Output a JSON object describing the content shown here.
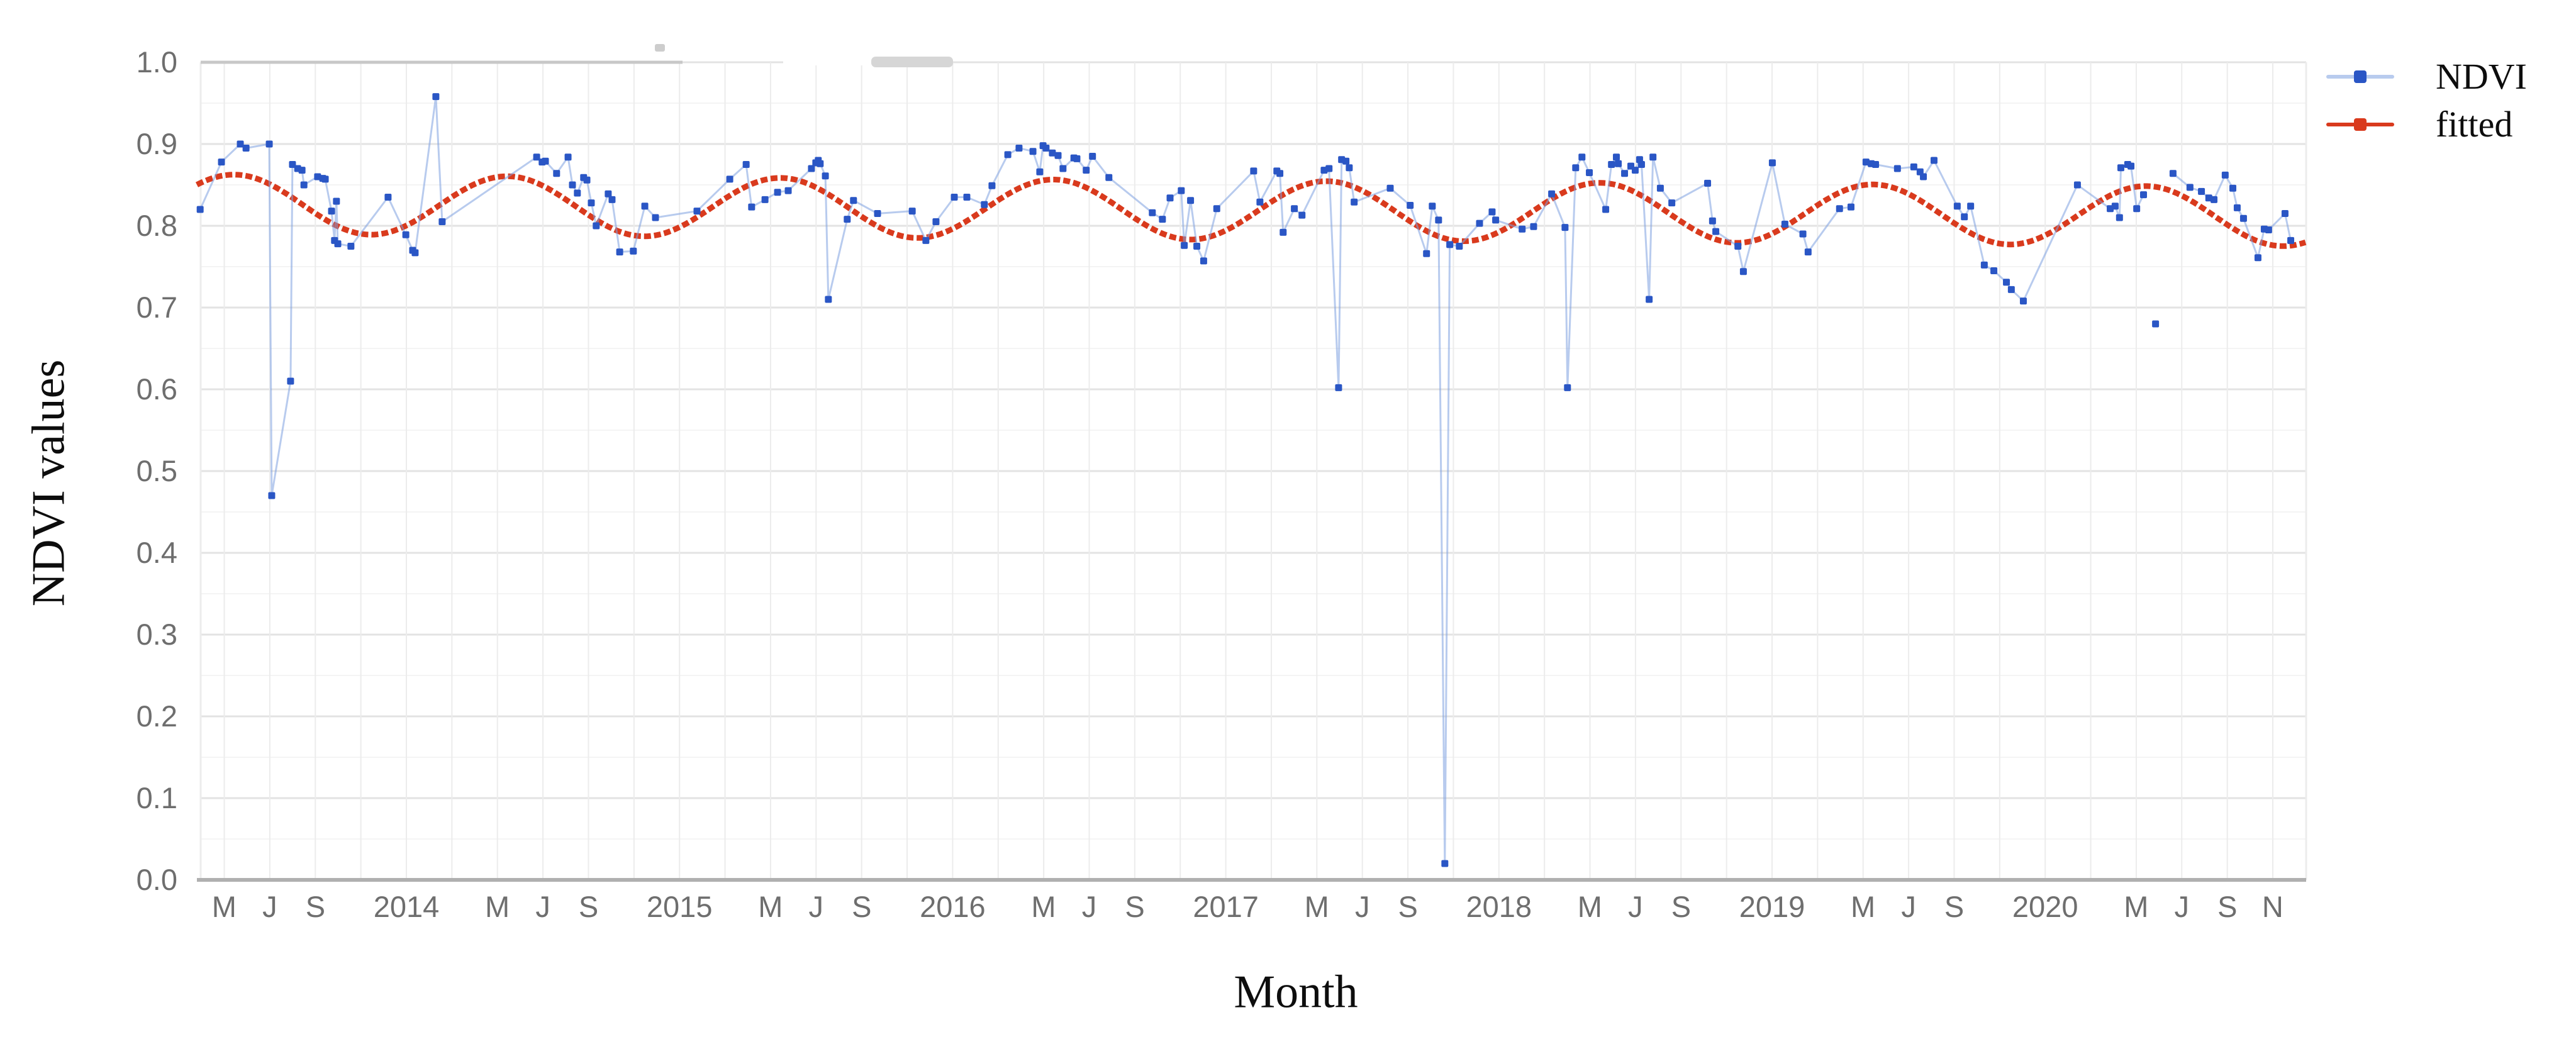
{
  "figure": {
    "background": "#ffffff",
    "y_axis_title": "NDVI values",
    "x_axis_title": "Month"
  },
  "colors": {
    "ndvi_marker": "#2a56c5",
    "ndvi_line": "rgba(125,160,224,0.55)",
    "fitted": "#d93a1d",
    "tick_text": "#6e6e6e",
    "grid_major": "#e3e3e3",
    "grid_minor": "#f4f4f4",
    "grid_vertical": "#ececec",
    "axis_line": "#b0b0b0",
    "top_line_dark_segment": "#c8c8c8",
    "artifact_gray": "#d6d6d6"
  },
  "chart_data": {
    "type": "scatter",
    "title": "",
    "xlabel": "Month",
    "ylabel": "NDVI values",
    "ylim": [
      0.0,
      1.0
    ],
    "xlim_years": [
      2013.233,
      2020.955
    ],
    "grid": "on",
    "legend_position": "outside-right-top",
    "y_ticks": [
      {
        "label": "1.0",
        "v": 1.0
      },
      {
        "label": "0.9",
        "v": 0.9
      },
      {
        "label": "0.8",
        "v": 0.8
      },
      {
        "label": "0.7",
        "v": 0.7
      },
      {
        "label": "0.6",
        "v": 0.6
      },
      {
        "label": "0.5",
        "v": 0.5
      },
      {
        "label": "0.4",
        "v": 0.4
      },
      {
        "label": "0.3",
        "v": 0.3
      },
      {
        "label": "0.2",
        "v": 0.2
      },
      {
        "label": "0.1",
        "v": 0.1
      },
      {
        "label": "0.0",
        "v": 0.0
      }
    ],
    "y_minor_grid_step": 0.05,
    "x_ticks": [
      {
        "l": "M",
        "t": 2013.333
      },
      {
        "l": "J",
        "t": 2013.5
      },
      {
        "l": "S",
        "t": 2013.667
      },
      {
        "l": "2014",
        "t": 2014.0
      },
      {
        "l": "M",
        "t": 2014.333
      },
      {
        "l": "J",
        "t": 2014.5
      },
      {
        "l": "S",
        "t": 2014.667
      },
      {
        "l": "2015",
        "t": 2015.0
      },
      {
        "l": "M",
        "t": 2015.333
      },
      {
        "l": "J",
        "t": 2015.5
      },
      {
        "l": "S",
        "t": 2015.667
      },
      {
        "l": "2016",
        "t": 2016.0
      },
      {
        "l": "M",
        "t": 2016.333
      },
      {
        "l": "J",
        "t": 2016.5
      },
      {
        "l": "S",
        "t": 2016.667
      },
      {
        "l": "2017",
        "t": 2017.0
      },
      {
        "l": "M",
        "t": 2017.333
      },
      {
        "l": "J",
        "t": 2017.5
      },
      {
        "l": "S",
        "t": 2017.667
      },
      {
        "l": "2018",
        "t": 2018.0
      },
      {
        "l": "M",
        "t": 2018.333
      },
      {
        "l": "J",
        "t": 2018.5
      },
      {
        "l": "S",
        "t": 2018.667
      },
      {
        "l": "2019",
        "t": 2019.0
      },
      {
        "l": "M",
        "t": 2019.333
      },
      {
        "l": "J",
        "t": 2019.5
      },
      {
        "l": "S",
        "t": 2019.667
      },
      {
        "l": "2020",
        "t": 2020.0
      },
      {
        "l": "M",
        "t": 2020.333
      },
      {
        "l": "J",
        "t": 2020.5
      },
      {
        "l": "S",
        "t": 2020.667
      },
      {
        "l": "N",
        "t": 2020.833
      }
    ],
    "x_grid_interval_months": 2,
    "series": [
      {
        "name": "NDVI",
        "type": "scatter-line",
        "color": "#2a56c5",
        "line_color": "rgba(125,160,224,0.55)",
        "points": [
          [
            2013.245,
            0.82
          ],
          [
            2013.323,
            0.878
          ],
          [
            2013.392,
            0.9
          ],
          [
            2013.413,
            0.895
          ],
          [
            2013.498,
            0.9
          ],
          [
            2013.507,
            0.47
          ],
          [
            2013.576,
            0.61
          ],
          [
            2013.583,
            0.875
          ],
          [
            2013.602,
            0.87
          ],
          [
            2013.618,
            0.868
          ],
          [
            2013.625,
            0.85
          ],
          [
            2013.675,
            0.86
          ],
          [
            2013.694,
            0.858
          ],
          [
            2013.703,
            0.857
          ],
          [
            2013.726,
            0.818
          ],
          [
            2013.737,
            0.782
          ],
          [
            2013.744,
            0.83
          ],
          [
            2013.749,
            0.778
          ],
          [
            2013.797,
            0.775
          ],
          [
            2013.933,
            0.835
          ],
          [
            2013.998,
            0.789
          ],
          [
            2014.023,
            0.77
          ],
          [
            2014.032,
            0.767
          ],
          [
            2014.108,
            0.958
          ],
          [
            2014.131,
            0.805
          ],
          [
            2014.477,
            0.884
          ],
          [
            2014.497,
            0.878
          ],
          [
            2014.509,
            0.879
          ],
          [
            2014.55,
            0.864
          ],
          [
            2014.592,
            0.884
          ],
          [
            2014.608,
            0.85
          ],
          [
            2014.626,
            0.84
          ],
          [
            2014.649,
            0.859
          ],
          [
            2014.661,
            0.856
          ],
          [
            2014.677,
            0.828
          ],
          [
            2014.695,
            0.8
          ],
          [
            2014.739,
            0.839
          ],
          [
            2014.753,
            0.832
          ],
          [
            2014.781,
            0.768
          ],
          [
            2014.831,
            0.769
          ],
          [
            2014.873,
            0.824
          ],
          [
            2014.912,
            0.81
          ],
          [
            2015.064,
            0.818
          ],
          [
            2015.184,
            0.857
          ],
          [
            2015.244,
            0.875
          ],
          [
            2015.264,
            0.823
          ],
          [
            2015.313,
            0.832
          ],
          [
            2015.359,
            0.841
          ],
          [
            2015.398,
            0.843
          ],
          [
            2015.483,
            0.87
          ],
          [
            2015.499,
            0.877
          ],
          [
            2015.508,
            0.88
          ],
          [
            2015.515,
            0.876
          ],
          [
            2015.534,
            0.861
          ],
          [
            2015.545,
            0.71
          ],
          [
            2015.614,
            0.808
          ],
          [
            2015.637,
            0.831
          ],
          [
            2015.725,
            0.815
          ],
          [
            2015.852,
            0.818
          ],
          [
            2015.902,
            0.782
          ],
          [
            2015.939,
            0.805
          ],
          [
            2016.006,
            0.835
          ],
          [
            2016.052,
            0.835
          ],
          [
            2016.116,
            0.826
          ],
          [
            2016.144,
            0.849
          ],
          [
            2016.202,
            0.887
          ],
          [
            2016.243,
            0.895
          ],
          [
            2016.294,
            0.891
          ],
          [
            2016.319,
            0.866
          ],
          [
            2016.331,
            0.898
          ],
          [
            2016.342,
            0.895
          ],
          [
            2016.365,
            0.889
          ],
          [
            2016.386,
            0.886
          ],
          [
            2016.404,
            0.87
          ],
          [
            2016.444,
            0.883
          ],
          [
            2016.455,
            0.882
          ],
          [
            2016.489,
            0.868
          ],
          [
            2016.512,
            0.885
          ],
          [
            2016.572,
            0.859
          ],
          [
            2016.731,
            0.816
          ],
          [
            2016.768,
            0.808
          ],
          [
            2016.796,
            0.834
          ],
          [
            2016.837,
            0.843
          ],
          [
            2016.848,
            0.776
          ],
          [
            2016.871,
            0.831
          ],
          [
            2016.894,
            0.775
          ],
          [
            2016.919,
            0.757
          ],
          [
            2016.967,
            0.821
          ],
          [
            2017.102,
            0.867
          ],
          [
            2017.125,
            0.829
          ],
          [
            2017.187,
            0.867
          ],
          [
            2017.198,
            0.864
          ],
          [
            2017.21,
            0.792
          ],
          [
            2017.251,
            0.821
          ],
          [
            2017.279,
            0.813
          ],
          [
            2017.36,
            0.868
          ],
          [
            2017.378,
            0.87
          ],
          [
            2017.413,
            0.602
          ],
          [
            2017.424,
            0.881
          ],
          [
            2017.44,
            0.879
          ],
          [
            2017.452,
            0.871
          ],
          [
            2017.47,
            0.829
          ],
          [
            2017.602,
            0.846
          ],
          [
            2017.675,
            0.825
          ],
          [
            2017.735,
            0.766
          ],
          [
            2017.756,
            0.824
          ],
          [
            2017.779,
            0.807
          ],
          [
            2017.802,
            0.02
          ],
          [
            2017.82,
            0.777
          ],
          [
            2017.855,
            0.775
          ],
          [
            2017.929,
            0.803
          ],
          [
            2017.975,
            0.817
          ],
          [
            2017.988,
            0.807
          ],
          [
            2018.085,
            0.796
          ],
          [
            2018.127,
            0.799
          ],
          [
            2018.193,
            0.839
          ],
          [
            2018.242,
            0.798
          ],
          [
            2018.251,
            0.602
          ],
          [
            2018.281,
            0.871
          ],
          [
            2018.304,
            0.884
          ],
          [
            2018.331,
            0.865
          ],
          [
            2018.391,
            0.82
          ],
          [
            2018.412,
            0.875
          ],
          [
            2018.43,
            0.884
          ],
          [
            2018.437,
            0.876
          ],
          [
            2018.46,
            0.864
          ],
          [
            2018.483,
            0.873
          ],
          [
            2018.499,
            0.868
          ],
          [
            2018.515,
            0.881
          ],
          [
            2018.522,
            0.875
          ],
          [
            2018.55,
            0.71
          ],
          [
            2018.564,
            0.884
          ],
          [
            2018.591,
            0.846
          ],
          [
            2018.633,
            0.828
          ],
          [
            2018.764,
            0.852
          ],
          [
            2018.782,
            0.806
          ],
          [
            2018.794,
            0.793
          ],
          [
            2018.875,
            0.775
          ],
          [
            2018.895,
            0.744
          ],
          [
            2019.001,
            0.877
          ],
          [
            2019.047,
            0.802
          ],
          [
            2019.113,
            0.79
          ],
          [
            2019.132,
            0.768
          ],
          [
            2019.247,
            0.821
          ],
          [
            2019.289,
            0.823
          ],
          [
            2019.344,
            0.878
          ],
          [
            2019.363,
            0.876
          ],
          [
            2019.379,
            0.875
          ],
          [
            2019.459,
            0.87
          ],
          [
            2019.519,
            0.872
          ],
          [
            2019.542,
            0.866
          ],
          [
            2019.554,
            0.86
          ],
          [
            2019.593,
            0.88
          ],
          [
            2019.678,
            0.824
          ],
          [
            2019.704,
            0.811
          ],
          [
            2019.727,
            0.824
          ],
          [
            2019.777,
            0.752
          ],
          [
            2019.812,
            0.745
          ],
          [
            2019.858,
            0.731
          ],
          [
            2019.876,
            0.722
          ],
          [
            2019.92,
            0.708
          ],
          [
            2020.118,
            0.85
          ],
          [
            2020.238,
            0.821
          ],
          [
            2020.256,
            0.824
          ],
          [
            2020.272,
            0.81
          ],
          [
            2020.277,
            0.871
          ],
          [
            2020.302,
            0.875
          ],
          [
            2020.314,
            0.873
          ],
          [
            2020.335,
            0.821
          ],
          [
            2020.36,
            0.838
          ],
          [
            2020.404,
            0.68,
            1
          ],
          [
            2020.468,
            0.864
          ],
          [
            2020.53,
            0.847
          ],
          [
            2020.572,
            0.842
          ],
          [
            2020.599,
            0.834
          ],
          [
            2020.618,
            0.832
          ],
          [
            2020.659,
            0.862
          ],
          [
            2020.687,
            0.846
          ],
          [
            2020.703,
            0.822
          ],
          [
            2020.726,
            0.809
          ],
          [
            2020.779,
            0.761
          ],
          [
            2020.802,
            0.796
          ],
          [
            2020.818,
            0.795
          ],
          [
            2020.878,
            0.815
          ],
          [
            2020.899,
            0.782
          ]
        ]
      },
      {
        "name": "fitted",
        "type": "harmonic-fit-curve",
        "color": "#d93a1d",
        "model": {
          "mean_at_2013_3": 0.8265,
          "trend_per_year": -0.002,
          "amplitude": 0.0362,
          "peak_year_fraction": 0.37,
          "period_years": 1.0,
          "description": "annual cosine: v = mean + A*cos(2*pi*(t-peak)); peak ~mid-May (~0.86 early years, ~0.85 late), trough ~Nov (~0.79 early, ~0.775 late)"
        }
      }
    ]
  },
  "legend": {
    "entries": [
      "NDVI",
      "fitted"
    ]
  }
}
